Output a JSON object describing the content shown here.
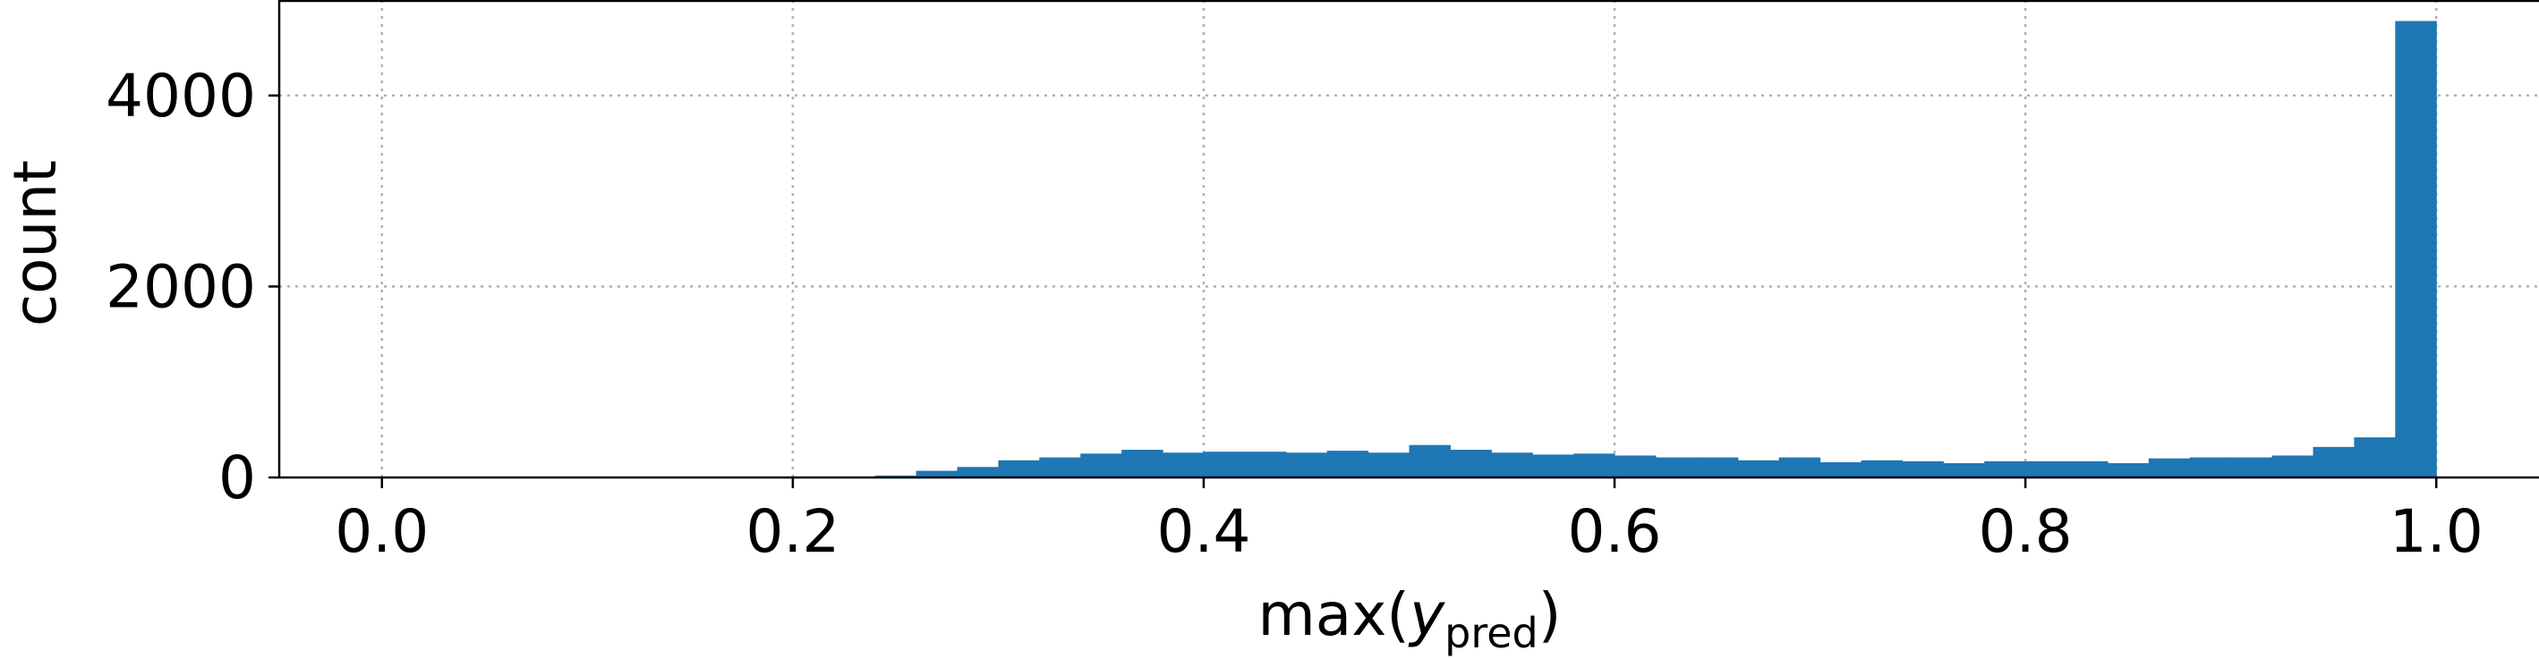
{
  "chart_data": {
    "type": "bar",
    "subtype": "histogram",
    "xlabel": {
      "base": "max(",
      "italic": "y",
      "subscript": "pred",
      "close": ")"
    },
    "ylabel": "count",
    "xlim": [
      -0.05,
      1.05
    ],
    "ylim": [
      0,
      5000
    ],
    "xticks": [
      0.0,
      0.2,
      0.4,
      0.6,
      0.8,
      1.0
    ],
    "xtick_labels": [
      "0.0",
      "0.2",
      "0.4",
      "0.6",
      "0.8",
      "1.0"
    ],
    "yticks": [
      0,
      2000,
      4000
    ],
    "ytick_labels": [
      "0",
      "2000",
      "4000"
    ],
    "grid": true,
    "bar_color": "#1f77b4",
    "bin_width": 0.02,
    "bins": [
      {
        "x0": 0.24,
        "count": 20
      },
      {
        "x0": 0.26,
        "count": 70
      },
      {
        "x0": 0.28,
        "count": 110
      },
      {
        "x0": 0.3,
        "count": 180
      },
      {
        "x0": 0.32,
        "count": 210
      },
      {
        "x0": 0.34,
        "count": 250
      },
      {
        "x0": 0.36,
        "count": 290
      },
      {
        "x0": 0.38,
        "count": 260
      },
      {
        "x0": 0.4,
        "count": 270
      },
      {
        "x0": 0.42,
        "count": 270
      },
      {
        "x0": 0.44,
        "count": 260
      },
      {
        "x0": 0.46,
        "count": 280
      },
      {
        "x0": 0.48,
        "count": 260
      },
      {
        "x0": 0.5,
        "count": 340
      },
      {
        "x0": 0.52,
        "count": 290
      },
      {
        "x0": 0.54,
        "count": 260
      },
      {
        "x0": 0.56,
        "count": 240
      },
      {
        "x0": 0.58,
        "count": 250
      },
      {
        "x0": 0.6,
        "count": 230
      },
      {
        "x0": 0.62,
        "count": 210
      },
      {
        "x0": 0.64,
        "count": 210
      },
      {
        "x0": 0.66,
        "count": 180
      },
      {
        "x0": 0.68,
        "count": 210
      },
      {
        "x0": 0.7,
        "count": 160
      },
      {
        "x0": 0.72,
        "count": 180
      },
      {
        "x0": 0.74,
        "count": 170
      },
      {
        "x0": 0.76,
        "count": 150
      },
      {
        "x0": 0.78,
        "count": 170
      },
      {
        "x0": 0.8,
        "count": 170
      },
      {
        "x0": 0.82,
        "count": 170
      },
      {
        "x0": 0.84,
        "count": 150
      },
      {
        "x0": 0.86,
        "count": 200
      },
      {
        "x0": 0.88,
        "count": 210
      },
      {
        "x0": 0.9,
        "count": 210
      },
      {
        "x0": 0.92,
        "count": 230
      },
      {
        "x0": 0.94,
        "count": 320
      },
      {
        "x0": 0.96,
        "count": 420
      },
      {
        "x0": 0.98,
        "count": 4780
      }
    ]
  }
}
